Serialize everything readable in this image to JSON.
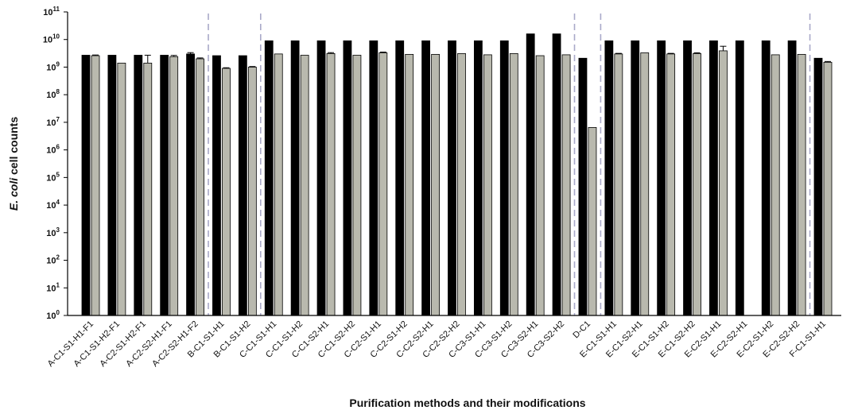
{
  "chart_data": {
    "type": "bar",
    "xlabel": "Purification methods and their modifications",
    "ylabel_italic": "E. coli",
    "ylabel_rest": " cell counts",
    "yscale": "log",
    "ylim": [
      1,
      100000000000
    ],
    "y_tick_base": "10",
    "y_tick_exponents": [
      "0",
      "1",
      "2",
      "3",
      "4",
      "5",
      "6",
      "7",
      "8",
      "9",
      "10",
      "11"
    ],
    "categories": [
      "A-C1-S1-H1-F1",
      "A-C1-S1-H2-F1",
      "A-C2-S1-H2-F1",
      "A-C2-S2-H1-F1",
      "A-C2-S2-H1-F2",
      "B-C1-S1-H1",
      "B-C1-S1-H2",
      "C-C1-S1-H1",
      "C-C1-S1-H2",
      "C-C1-S2-H1",
      "C-C1-S2-H2",
      "C-C2-S1-H1",
      "C-C2-S1-H2",
      "C-C2-S2-H1",
      "C-C2-S2-H2",
      "C-C3-S1-H1",
      "C-C3-S1-H2",
      "C-C3-S2-H1",
      "C-C3-S2-H2",
      "D-C1",
      "E-C1-S1-H1",
      "E-C1-S2-H1",
      "E-C1-S1-H2",
      "E-C1-S2-H2",
      "E-C2-S1-H1",
      "E-C2-S2-H1",
      "E-C2-S1-H2",
      "E-C2-S2-H2",
      "F-C1-S1-H1"
    ],
    "series": [
      {
        "color": "#000000",
        "values": [
          2700000000.0,
          2700000000.0,
          2700000000.0,
          2700000000.0,
          3000000000.0,
          2600000000.0,
          2600000000.0,
          9000000000.0,
          9000000000.0,
          9000000000.0,
          9000000000.0,
          9000000000.0,
          9000000000.0,
          9000000000.0,
          9000000000.0,
          9000000000.0,
          9000000000.0,
          16000000000.0,
          16000000000.0,
          2100000000.0,
          9000000000.0,
          9000000000.0,
          9000000000.0,
          9000000000.0,
          9000000000.0,
          9000000000.0,
          9000000000.0,
          9000000000.0,
          2100000000.0
        ],
        "errors": [
          0,
          0,
          0,
          0,
          350000000.0,
          0,
          0,
          0,
          0,
          0,
          0,
          0,
          0,
          0,
          0,
          0,
          0,
          0,
          0,
          0,
          0,
          0,
          0,
          0,
          0,
          0,
          0,
          0,
          0
        ]
      },
      {
        "color": "#b9b9ae",
        "values": [
          2600000000.0,
          1400000000.0,
          1400000000.0,
          2400000000.0,
          2000000000.0,
          900000000.0,
          1000000000.0,
          3000000000.0,
          2700000000.0,
          3100000000.0,
          2700000000.0,
          3300000000.0,
          2900000000.0,
          2900000000.0,
          3100000000.0,
          2800000000.0,
          3100000000.0,
          2600000000.0,
          2800000000.0,
          6500000.0,
          3000000000.0,
          3300000000.0,
          3000000000.0,
          3100000000.0,
          3900000000.0,
          null,
          2800000000.0,
          2900000000.0,
          1500000000.0
        ],
        "errors": [
          150000000.0,
          0,
          1300000000.0,
          250000000.0,
          150000000.0,
          50000000.0,
          50000000.0,
          0,
          0,
          250000000.0,
          0,
          200000000.0,
          0,
          0,
          0,
          0,
          0,
          0,
          0,
          0,
          150000000.0,
          0,
          150000000.0,
          200000000.0,
          1800000000.0,
          0,
          0,
          0,
          100000000.0
        ]
      }
    ],
    "group_dividers_after": [
      4,
      6,
      18,
      19,
      27
    ],
    "divider_color": "#a9a9c9",
    "grid": false
  }
}
